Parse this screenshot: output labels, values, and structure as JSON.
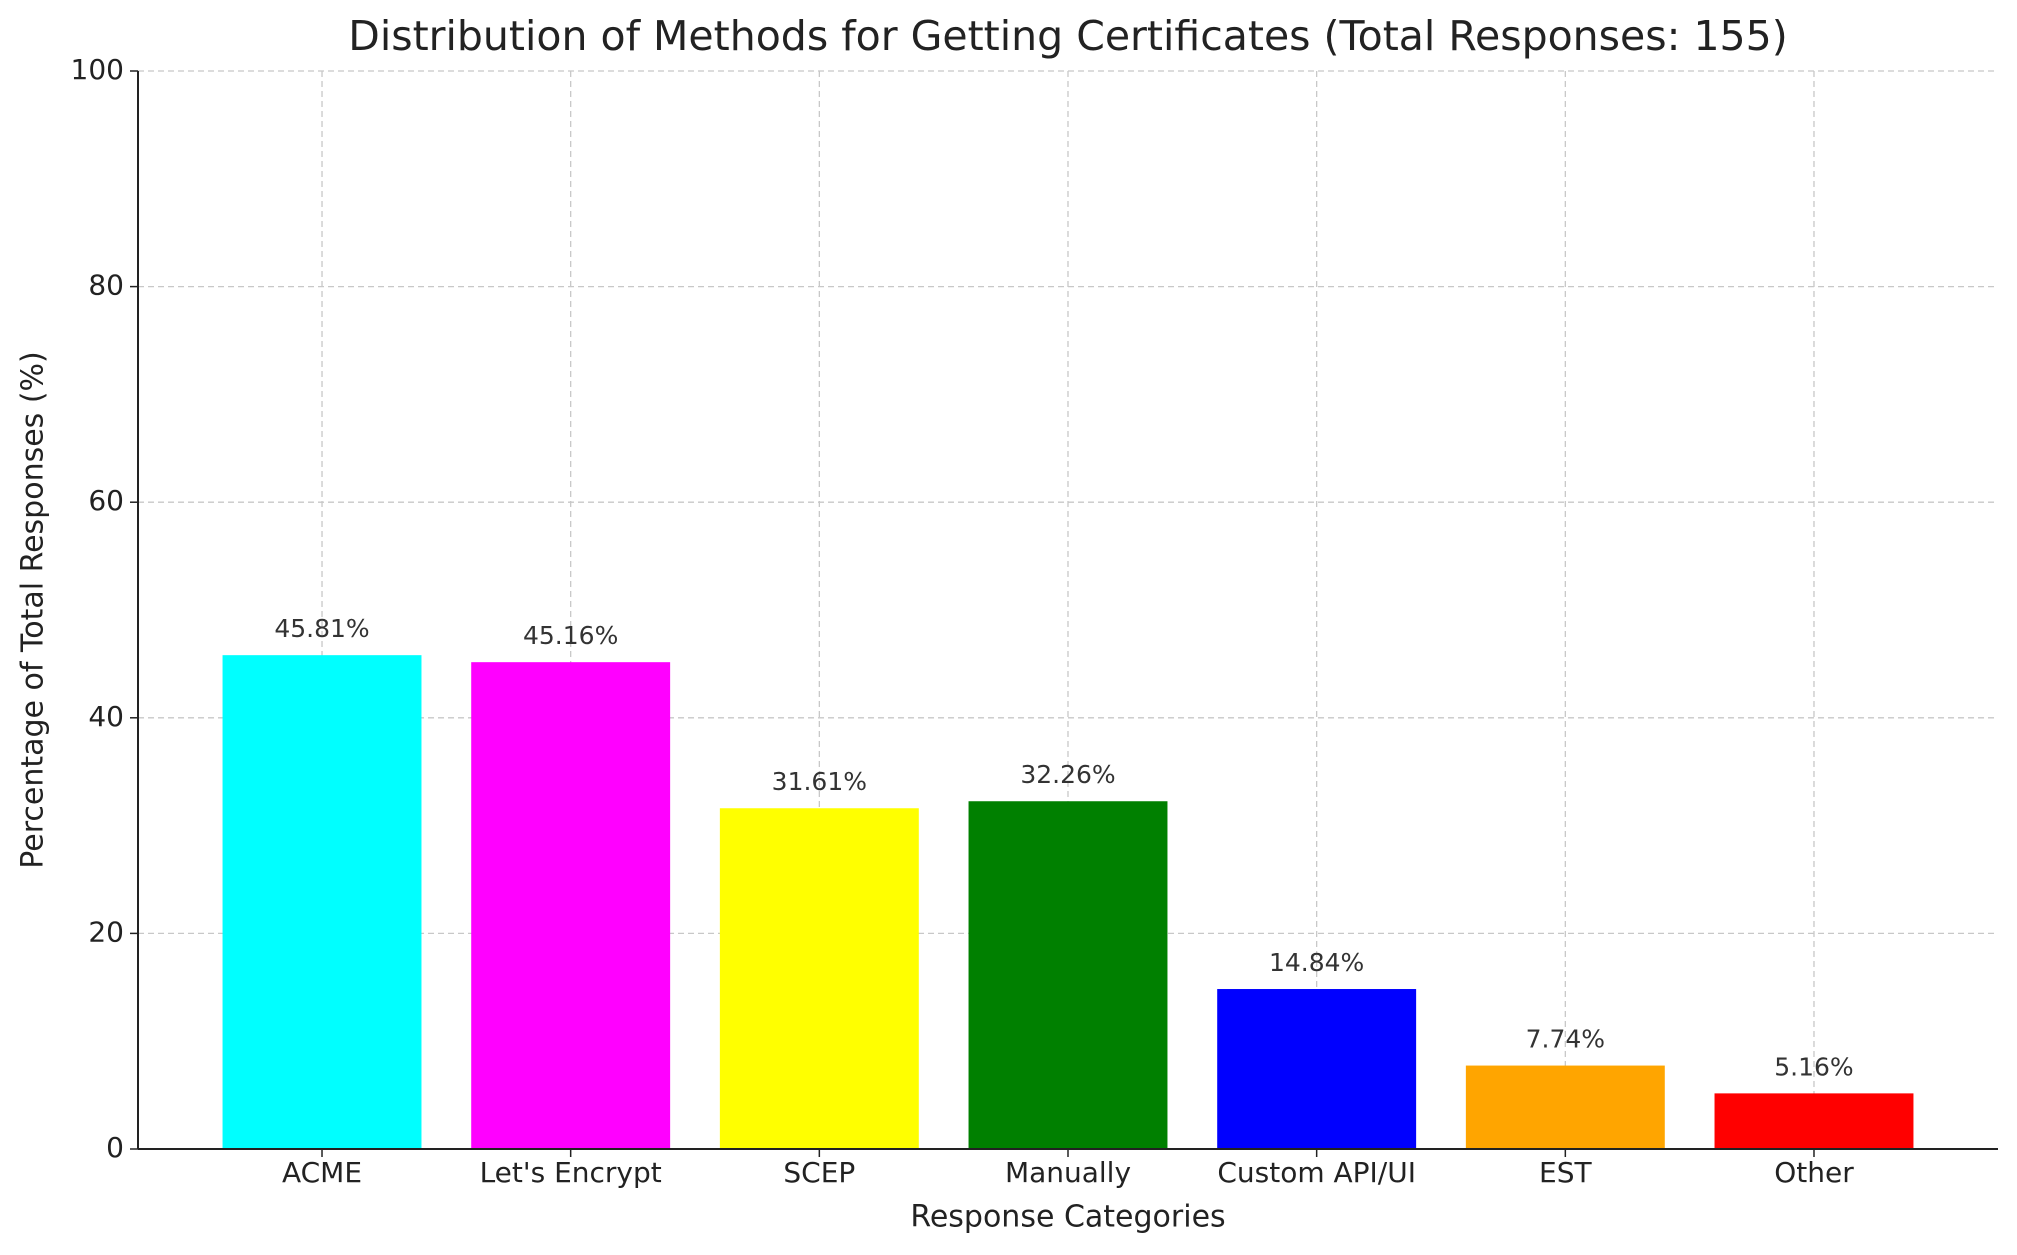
{
  "chart_data": {
    "type": "bar",
    "title": "Distribution of Methods for Getting Certificates (Total Responses: 155)",
    "x_label": "Response Categories",
    "y_label": "Percentage of Total Responses (%)",
    "categories": [
      "ACME",
      "Let's Encrypt",
      "SCEP",
      "Manually",
      "Custom API/UI",
      "EST",
      "Other"
    ],
    "values": [
      45.81,
      45.16,
      31.61,
      32.26,
      14.84,
      7.74,
      5.16
    ],
    "value_labels": [
      "45.81%",
      "45.16%",
      "31.61%",
      "32.26%",
      "14.84%",
      "7.74%",
      "5.16%"
    ],
    "colors": [
      "#00ffff",
      "#ff00ff",
      "#ffff00",
      "#008000",
      "#0000ff",
      "#ffa500",
      "#ff0000"
    ],
    "ylim": [
      0,
      100
    ],
    "yticks": [
      0,
      20,
      40,
      60,
      80,
      100
    ],
    "grid": true
  }
}
